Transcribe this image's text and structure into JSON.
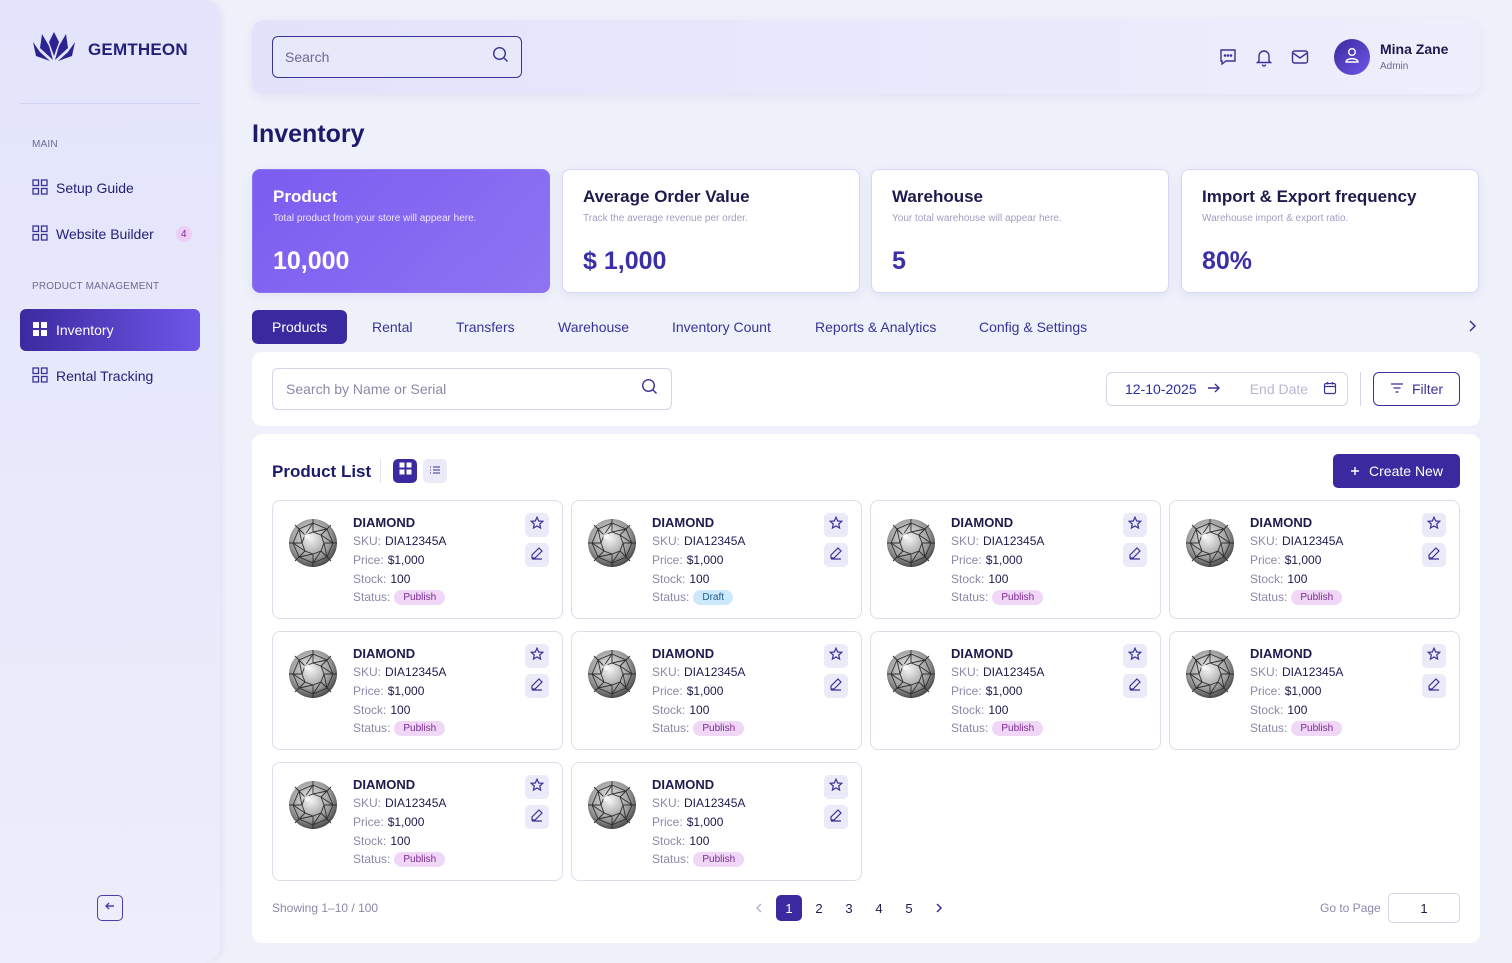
{
  "brand": {
    "name": "GEMTHEON"
  },
  "sidebar": {
    "sections": [
      "MAIN",
      "PRODUCT MANAGEMENT"
    ],
    "items": [
      {
        "label": "Setup Guide",
        "icon": "grid-icon"
      },
      {
        "label": "Website Builder",
        "icon": "grid-icon",
        "badge": "4"
      },
      {
        "label": "Inventory",
        "icon": "grid-icon",
        "active": true
      },
      {
        "label": "Rental Tracking",
        "icon": "grid-icon"
      }
    ]
  },
  "header": {
    "search_placeholder": "Search",
    "user": {
      "name": "Mina Zane",
      "role": "Admin"
    },
    "icons": [
      "chat-icon",
      "bell-icon",
      "mail-icon"
    ]
  },
  "page": {
    "title": "Inventory"
  },
  "stats": [
    {
      "title": "Product",
      "subtitle": "Total product from your store will appear here.",
      "value": "10,000"
    },
    {
      "title": "Average Order Value",
      "subtitle": "Track the average revenue per order.",
      "value": "$ 1,000"
    },
    {
      "title": "Warehouse",
      "subtitle": "Your total warehouse will appear here.",
      "value": "5"
    },
    {
      "title": "Import & Export frequency",
      "subtitle": "Warehouse import & export ratio.",
      "value": "80%"
    }
  ],
  "tabs": [
    "Products",
    "Rental",
    "Transfers",
    "Warehouse",
    "Inventory Count",
    "Reports & Analytics",
    "Config & Settings"
  ],
  "filters": {
    "search_placeholder": "Search by Name or Serial",
    "start_date": "12-10-2025",
    "end_date_placeholder": "End Date",
    "filter_label": "Filter"
  },
  "product_list": {
    "title": "Product List",
    "create_label": "Create New",
    "labels": {
      "sku": "SKU:",
      "price": "Price:",
      "stock": "Stock:",
      "status": "Status:"
    },
    "products": [
      {
        "name": "DIAMOND",
        "sku": "DIA12345A",
        "price": "$1,000",
        "stock": "100",
        "status": "Publish"
      },
      {
        "name": "DIAMOND",
        "sku": "DIA12345A",
        "price": "$1,000",
        "stock": "100",
        "status": "Draft"
      },
      {
        "name": "DIAMOND",
        "sku": "DIA12345A",
        "price": "$1,000",
        "stock": "100",
        "status": "Publish"
      },
      {
        "name": "DIAMOND",
        "sku": "DIA12345A",
        "price": "$1,000",
        "stock": "100",
        "status": "Publish"
      },
      {
        "name": "DIAMOND",
        "sku": "DIA12345A",
        "price": "$1,000",
        "stock": "100",
        "status": "Publish"
      },
      {
        "name": "DIAMOND",
        "sku": "DIA12345A",
        "price": "$1,000",
        "stock": "100",
        "status": "Publish"
      },
      {
        "name": "DIAMOND",
        "sku": "DIA12345A",
        "price": "$1,000",
        "stock": "100",
        "status": "Publish"
      },
      {
        "name": "DIAMOND",
        "sku": "DIA12345A",
        "price": "$1,000",
        "stock": "100",
        "status": "Publish"
      },
      {
        "name": "DIAMOND",
        "sku": "DIA12345A",
        "price": "$1,000",
        "stock": "100",
        "status": "Publish"
      },
      {
        "name": "DIAMOND",
        "sku": "DIA12345A",
        "price": "$1,000",
        "stock": "100",
        "status": "Publish"
      }
    ]
  },
  "pagination": {
    "showing": "Showing 1–10 / 100",
    "pages": [
      "1",
      "2",
      "3",
      "4",
      "5"
    ],
    "current": "1",
    "goto_label": "Go to Page",
    "goto_value": "1"
  },
  "colors": {
    "accent": "#3b2a9f",
    "accent_light": "#7b5df0",
    "publish_bg": "#f0d6f7",
    "draft_bg": "#cce8fb"
  }
}
